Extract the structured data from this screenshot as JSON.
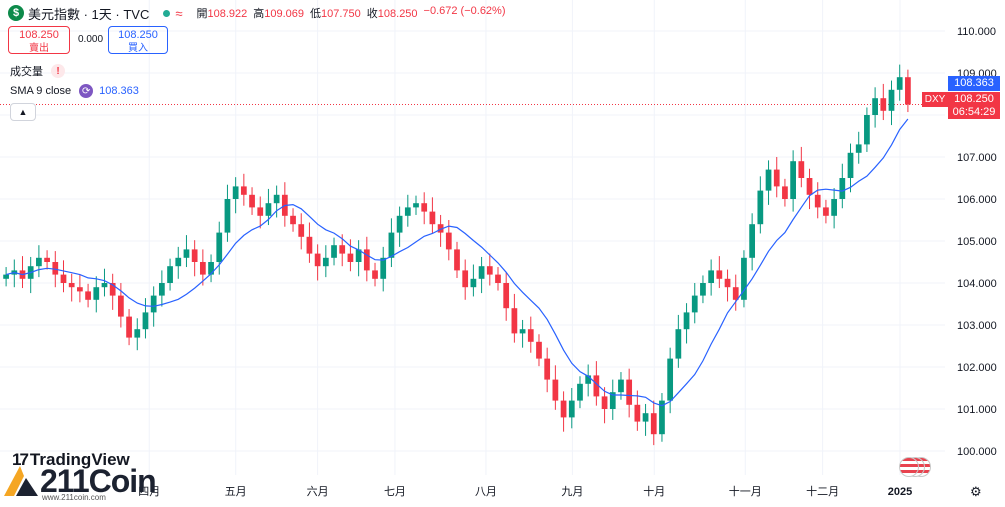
{
  "header": {
    "symbol_icon": "dollar-icon",
    "title": "美元指數 · 1天 · TVC",
    "market_status": "≈",
    "ohlc": [
      {
        "label": "開",
        "value": "108.922"
      },
      {
        "label": "高",
        "value": "109.069"
      },
      {
        "label": "低",
        "value": "107.750"
      },
      {
        "label": "收",
        "value": "108.250"
      }
    ],
    "change": "−0.672 (−0.62%)"
  },
  "trade": {
    "sell_price": "108.250",
    "sell_label": "賣出",
    "spread": "0.000",
    "buy_price": "108.250",
    "buy_label": "買入"
  },
  "indicators": {
    "volume_label": "成交量",
    "volume_warning": "!",
    "sma_label": "SMA 9 close",
    "sma_value": "108.363"
  },
  "price_scale": {
    "sma_tag": "108.363",
    "last_price": "108.250",
    "countdown": "06:54:29",
    "symbol_tag": "DXY"
  },
  "branding": {
    "tradingview": "TradingView",
    "coin": "211Coin",
    "coin_url": "www.211coin.com"
  },
  "colors": {
    "up": "#089981",
    "down": "#f23645",
    "sma": "#2962ff",
    "grid": "#f0f3fa"
  },
  "chart_data": {
    "type": "candlestick",
    "y_ticks": [
      "110.000",
      "109.000",
      "108.000",
      "107.000",
      "106.000",
      "105.000",
      "104.000",
      "103.000",
      "102.000",
      "101.000",
      "100.000"
    ],
    "ylim": [
      99.5,
      110.5
    ],
    "x_ticks": [
      {
        "label": "四月",
        "t": 0.175
      },
      {
        "label": "五月",
        "t": 0.27
      },
      {
        "label": "六月",
        "t": 0.36
      },
      {
        "label": "七月",
        "t": 0.445
      },
      {
        "label": "八月",
        "t": 0.545
      },
      {
        "label": "九月",
        "t": 0.64
      },
      {
        "label": "十月",
        "t": 0.73
      },
      {
        "label": "十一月",
        "t": 0.83
      },
      {
        "label": "十二月",
        "t": 0.915
      },
      {
        "label": "2025",
        "t": 1.0
      }
    ],
    "close_series": [
      104.2,
      104.3,
      104.1,
      104.4,
      104.6,
      104.5,
      104.2,
      104.0,
      103.9,
      103.8,
      103.6,
      103.9,
      104.0,
      103.7,
      103.2,
      102.7,
      102.9,
      103.3,
      103.7,
      104.0,
      104.4,
      104.6,
      104.8,
      104.5,
      104.2,
      104.5,
      105.2,
      106.0,
      106.3,
      106.1,
      105.8,
      105.6,
      105.9,
      106.1,
      105.6,
      105.4,
      105.1,
      104.7,
      104.4,
      104.6,
      104.9,
      104.7,
      104.5,
      104.8,
      104.3,
      104.1,
      104.6,
      105.2,
      105.6,
      105.8,
      105.9,
      105.7,
      105.4,
      105.2,
      104.8,
      104.3,
      103.9,
      104.1,
      104.4,
      104.2,
      104.0,
      103.4,
      102.8,
      102.9,
      102.6,
      102.2,
      101.7,
      101.2,
      100.8,
      101.2,
      101.6,
      101.8,
      101.3,
      101.0,
      101.4,
      101.7,
      101.1,
      100.7,
      100.9,
      100.4,
      101.2,
      102.2,
      102.9,
      103.3,
      103.7,
      104.0,
      104.3,
      104.1,
      103.9,
      103.6,
      104.6,
      105.4,
      106.2,
      106.7,
      106.3,
      106.0,
      106.9,
      106.5,
      106.1,
      105.8,
      105.6,
      106.0,
      106.5,
      107.1,
      107.3,
      108.0,
      108.4,
      108.1,
      108.6,
      108.9,
      108.25
    ]
  }
}
